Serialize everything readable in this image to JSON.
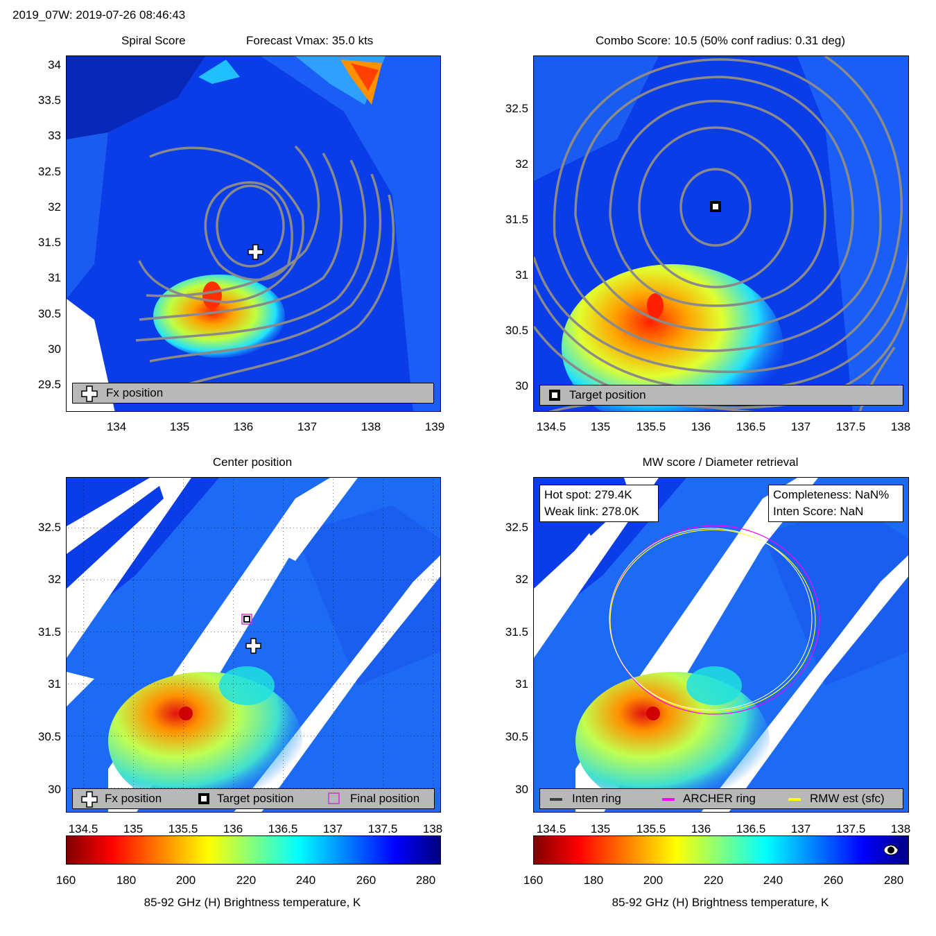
{
  "header": {
    "title": "2019_07W: 2019-07-26 08:46:43"
  },
  "panels": {
    "spiral": {
      "title_left": "Spiral Score",
      "title_right": "Forecast Vmax: 35.0 kts",
      "legend": {
        "fx": "Fx position"
      },
      "xticks": [
        "134",
        "135",
        "136",
        "137",
        "138",
        "139"
      ],
      "yticks": [
        "34",
        "33.5",
        "33",
        "32.5",
        "32",
        "31.5",
        "31",
        "30.5",
        "30",
        "29.5"
      ]
    },
    "combo": {
      "title": "Combo Score: 10.5  (50% conf radius: 0.31 deg)",
      "legend": {
        "target": "Target position"
      },
      "xticks": [
        "134.5",
        "135",
        "135.5",
        "136",
        "136.5",
        "137",
        "137.5",
        "138"
      ],
      "yticks": [
        "32.5",
        "32",
        "31.5",
        "31",
        "30.5",
        "30"
      ]
    },
    "center": {
      "title": "Center position",
      "legend": {
        "fx": "Fx position",
        "target": "Target position",
        "final": "Final position"
      },
      "xticks": [
        "134.5",
        "135",
        "135.5",
        "136",
        "136.5",
        "137",
        "137.5",
        "138"
      ],
      "yticks": [
        "32.5",
        "32",
        "31.5",
        "31",
        "30.5",
        "30"
      ]
    },
    "mw": {
      "title": "MW score / Diameter retrieval",
      "info_left": {
        "hot_spot": "Hot spot: 279.4K",
        "weak_link": "Weak link: 278.0K"
      },
      "info_right": {
        "completeness": "Completeness: NaN%",
        "inten_score": "Inten Score: NaN"
      },
      "legend": {
        "inten_ring": "Inten ring",
        "archer_ring": "ARCHER ring",
        "rmw": "RMW est (sfc)"
      },
      "xticks": [
        "134.5",
        "135",
        "135.5",
        "136",
        "136.5",
        "137",
        "137.5",
        "138"
      ],
      "yticks": [
        "32.5",
        "32",
        "31.5",
        "31",
        "30.5",
        "30"
      ]
    }
  },
  "colorbar": {
    "ticks": [
      "160",
      "180",
      "200",
      "220",
      "240",
      "260",
      "280"
    ],
    "label": "85-92 GHz (H) Brightness temperature, K"
  },
  "chart_data": [
    {
      "type": "heatmap",
      "title": "Spiral Score",
      "annotation": "Forecast Vmax: 35.0 kts",
      "xlim": [
        133.2,
        139.1
      ],
      "ylim": [
        29.1,
        34.2
      ],
      "markers": [
        {
          "name": "Fx position",
          "x": 136.2,
          "y": 31.35
        }
      ]
    },
    {
      "type": "heatmap",
      "title": "Combo Score: 10.5  (50% conf radius: 0.31 deg)",
      "xlim": [
        134.4,
        138.0
      ],
      "ylim": [
        29.8,
        32.9
      ],
      "markers": [
        {
          "name": "Target position",
          "x": 136.15,
          "y": 31.62
        }
      ]
    },
    {
      "type": "heatmap",
      "title": "Center position",
      "xlim": [
        134.4,
        138.0
      ],
      "ylim": [
        29.8,
        32.9
      ],
      "markers": [
        {
          "name": "Fx position",
          "x": 136.2,
          "y": 31.35
        },
        {
          "name": "Target position",
          "x": 136.15,
          "y": 31.62
        },
        {
          "name": "Final position",
          "x": 136.15,
          "y": 31.62
        }
      ]
    },
    {
      "type": "heatmap",
      "title": "MW score / Diameter retrieval",
      "xlim": [
        134.4,
        138.0
      ],
      "ylim": [
        29.8,
        32.9
      ],
      "hot_spot_K": 279.4,
      "weak_link_K": 278.0,
      "rings": [
        {
          "name": "ARCHER ring",
          "color": "#ff00ff"
        },
        {
          "name": "RMW est (sfc)",
          "color": "#ffff00"
        },
        {
          "name": "Inten ring",
          "color": "#404040"
        }
      ]
    },
    {
      "type": "colorbar",
      "range": [
        160,
        285
      ],
      "ticks": [
        160,
        180,
        200,
        220,
        240,
        260,
        280
      ],
      "label": "85-92 GHz (H) Brightness temperature, K"
    }
  ],
  "colors": {
    "contour": "#8a8a8a",
    "archer": "#ff00ff",
    "rmw": "#ffff00",
    "legend_bg": "#b8b8b8"
  }
}
